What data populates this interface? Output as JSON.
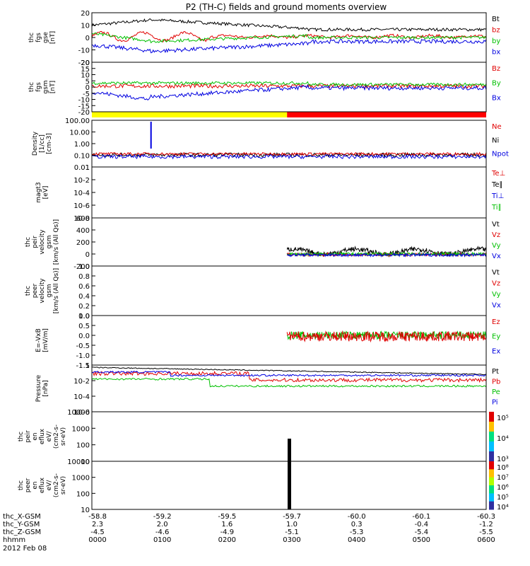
{
  "chart_data": {
    "type": "line",
    "title": "P2 (TH-C) fields and ground moments overview",
    "date": "2012 Feb 08",
    "time_axis": {
      "rows": [
        {
          "label": "thc_X-GSM",
          "values": [
            "-58.8",
            "-59.2",
            "-59.5",
            "-59.7",
            "-60.0",
            "-60.1",
            "-60.3"
          ]
        },
        {
          "label": "thc_Y-GSM",
          "values": [
            "2.3",
            "2.0",
            "1.6",
            "1.0",
            "0.3",
            "-0.4",
            "-1.2"
          ]
        },
        {
          "label": "thc_Z-GSM",
          "values": [
            "-4.5",
            "-4.6",
            "-4.9",
            "-5.1",
            "-5.3",
            "-5.4",
            "-5.5"
          ]
        },
        {
          "label": "hhmm",
          "values": [
            "0000",
            "0100",
            "0200",
            "0300",
            "0400",
            "0500",
            "0600"
          ]
        }
      ]
    },
    "panels": [
      {
        "id": "fgs-gse",
        "ylabel": [
          "thc",
          "fgs",
          "gse",
          "[nT]"
        ],
        "ticks": [
          "20",
          "10",
          "0",
          "-10",
          "-20"
        ],
        "legend": [
          {
            "text": "Bt",
            "color": "#000000"
          },
          {
            "text": "bz",
            "color": "#e00000"
          },
          {
            "text": "by",
            "color": "#00c000"
          },
          {
            "text": "bx",
            "color": "#0000e0"
          }
        ]
      },
      {
        "id": "fgs-gsm",
        "ylabel": [
          "thc",
          "fgs",
          "gsm",
          "[nT]"
        ],
        "ticks": [
          "20",
          "15",
          "10",
          "5",
          "0",
          "-5",
          "-10",
          "-15",
          "-20"
        ],
        "legend": [
          {
            "text": "Bz",
            "color": "#e00000"
          },
          {
            "text": "By",
            "color": "#00c000"
          },
          {
            "text": "Bx",
            "color": "#0000e0"
          }
        ]
      },
      {
        "id": "density",
        "ylabel": [
          "Density",
          "[1/cc]",
          "[cm-3]"
        ],
        "ticks": [
          "100.00",
          "10.00",
          "1.00",
          "0.10",
          "0.01"
        ],
        "legend": [
          {
            "text": "Ne",
            "color": "#e00000"
          },
          {
            "text": "Ni",
            "color": "#000000"
          },
          {
            "text": "Npot",
            "color": "#0000e0"
          }
        ]
      },
      {
        "id": "temperature",
        "ylabel": [
          "magt3",
          "[eV]"
        ],
        "ticks": [
          "1",
          "10-2",
          "10-4",
          "10-6",
          "10-8"
        ],
        "legend": [
          {
            "text": "Te⊥",
            "color": "#e00000"
          },
          {
            "text": "Te∥",
            "color": "#000000"
          },
          {
            "text": "Ti⊥",
            "color": "#0000e0"
          },
          {
            "text": "Ti∥",
            "color": "#00c000"
          }
        ]
      },
      {
        "id": "peir-velocity",
        "ylabel": [
          "thc",
          "peir",
          "velocity",
          "gsm",
          "[km/s (All Qs)]"
        ],
        "ticks": [
          "600",
          "400",
          "200",
          "0",
          "-200"
        ],
        "legend": [
          {
            "text": "Vt",
            "color": "#000000"
          },
          {
            "text": "Vz",
            "color": "#e00000"
          },
          {
            "text": "Vy",
            "color": "#00c000"
          },
          {
            "text": "Vx",
            "color": "#0000e0"
          }
        ]
      },
      {
        "id": "peer-velocity",
        "ylabel": [
          "thc",
          "peer",
          "velocity",
          "gsm",
          "[km/s (All Qs)]"
        ],
        "ticks": [
          "1.0",
          "0.8",
          "0.6",
          "0.4",
          "0.2",
          "0.0"
        ],
        "legend": [
          {
            "text": "Vt",
            "color": "#000000"
          },
          {
            "text": "Vz",
            "color": "#e00000"
          },
          {
            "text": "Vy",
            "color": "#00c000"
          },
          {
            "text": "Vx",
            "color": "#0000e0"
          }
        ]
      },
      {
        "id": "efield",
        "ylabel": [
          "E=-VxB",
          "[mV/m]"
        ],
        "ticks": [
          "1.0",
          "0.5",
          "0.0",
          "-0.5",
          "-1.0",
          "-1.5"
        ],
        "legend": [
          {
            "text": "Ez",
            "color": "#e00000"
          },
          {
            "text": "Ey",
            "color": "#00c000"
          },
          {
            "text": "Ex",
            "color": "#0000e0"
          }
        ]
      },
      {
        "id": "pressure",
        "ylabel": [
          "Pressure",
          "[nPa]"
        ],
        "ticks": [
          "1",
          "10-2",
          "10-4",
          "10-6"
        ],
        "legend": [
          {
            "text": "Pt",
            "color": "#000000"
          },
          {
            "text": "Pb",
            "color": "#e00000"
          },
          {
            "text": "Pe",
            "color": "#00c000"
          },
          {
            "text": "Pi",
            "color": "#0000e0"
          }
        ]
      },
      {
        "id": "peir-eflux",
        "ylabel": [
          "thc",
          "peir",
          "en",
          "eflux",
          "eV/",
          "(cm2-s-",
          "sr-eV)"
        ],
        "ticks": [
          "10000",
          "1000",
          "100",
          "10"
        ],
        "colorbar": [
          "10⁵",
          "10⁴",
          "10³"
        ]
      },
      {
        "id": "peer-eflux",
        "ylabel": [
          "thc",
          "peer",
          "en",
          "eflux",
          "eV/",
          "(cm2-s-",
          "sr-eV)"
        ],
        "ticks": [
          "10000",
          "1000",
          "100",
          "10"
        ],
        "colorbar": [
          "10⁸",
          "10⁷",
          "10⁶",
          "10⁵",
          "10⁴"
        ]
      }
    ],
    "bar": {
      "colors": [
        "#ffff00",
        "#ff0000"
      ],
      "split_hhmm": "0300"
    }
  }
}
